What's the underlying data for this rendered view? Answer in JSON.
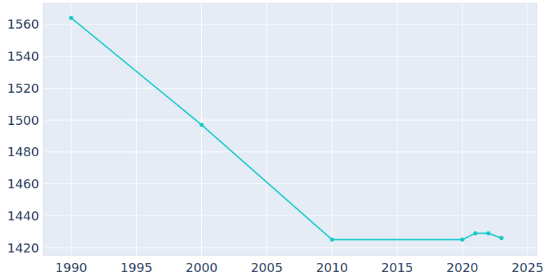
{
  "chart_data": {
    "type": "line",
    "x": [
      1990,
      2000,
      2010,
      2020,
      2021,
      2022,
      2023
    ],
    "values": [
      1564,
      1497,
      1425,
      1425,
      1429,
      1429,
      1426
    ],
    "color": "#17c9c9",
    "marker": "circle",
    "xlim": [
      1987.86,
      2025.7
    ],
    "xticks": [
      1990,
      1995,
      2000,
      2005,
      2010,
      2015,
      2020,
      2025
    ],
    "ylim": [
      1415.2,
      1573.1
    ],
    "yticks": [
      1420,
      1440,
      1460,
      1480,
      1500,
      1520,
      1540,
      1560
    ],
    "grid": true
  }
}
